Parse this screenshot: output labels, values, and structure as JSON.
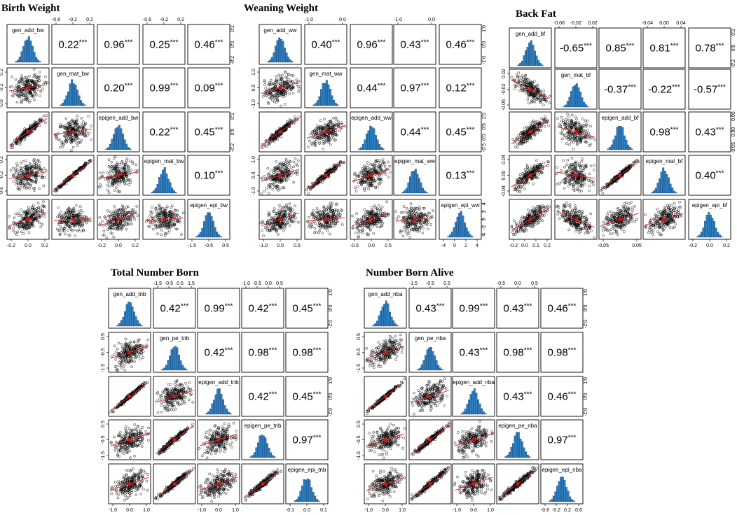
{
  "chart_data": [
    {
      "type": "scatter-matrix",
      "title": "Birth Weight",
      "variables": [
        "gen_add_bw",
        "gen_mat_bw",
        "epigen_add_bw",
        "epigen_mat_bw",
        "epigen_epi_bw"
      ],
      "correlations": [
        {
          "pair": [
            "gen_add_bw",
            "gen_mat_bw"
          ],
          "value": "0.22",
          "sig": "***"
        },
        {
          "pair": [
            "gen_add_bw",
            "epigen_add_bw"
          ],
          "value": "0.96",
          "sig": "***"
        },
        {
          "pair": [
            "gen_add_bw",
            "epigen_mat_bw"
          ],
          "value": "0.25",
          "sig": "***"
        },
        {
          "pair": [
            "gen_add_bw",
            "epigen_epi_bw"
          ],
          "value": "0.46",
          "sig": "***"
        },
        {
          "pair": [
            "gen_mat_bw",
            "epigen_add_bw"
          ],
          "value": "0.20",
          "sig": "***"
        },
        {
          "pair": [
            "gen_mat_bw",
            "epigen_mat_bw"
          ],
          "value": "0.99",
          "sig": "***"
        },
        {
          "pair": [
            "gen_mat_bw",
            "epigen_epi_bw"
          ],
          "value": "0.09",
          "sig": "***"
        },
        {
          "pair": [
            "epigen_add_bw",
            "epigen_mat_bw"
          ],
          "value": "0.22",
          "sig": "***"
        },
        {
          "pair": [
            "epigen_add_bw",
            "epigen_epi_bw"
          ],
          "value": "0.45",
          "sig": "***"
        },
        {
          "pair": [
            "epigen_mat_bw",
            "epigen_epi_bw"
          ],
          "value": "0.10",
          "sig": "***"
        }
      ],
      "top_axis": [
        [
          "-0.6",
          "-0.2",
          "0.2"
        ],
        [
          "-0.6",
          "-0.2",
          "0.2"
        ]
      ],
      "right_axis": [
        [
          "0.2",
          "0.0",
          "-0.2"
        ],
        [
          "0.2",
          "0.0",
          "-0.2"
        ]
      ],
      "bottom_axis": [
        [
          "-0.2",
          "0.0",
          "0.2"
        ],
        [
          "-0.2",
          "0.0",
          "0.2"
        ],
        [
          "-1.5",
          "-0.5",
          "0.5"
        ]
      ],
      "left_axis": [
        [
          "0.2",
          "-0.2",
          "-0.6"
        ],
        [
          "0.2",
          "-0.2",
          "-0.6"
        ]
      ]
    },
    {
      "type": "scatter-matrix",
      "title": "Weaning Weight",
      "variables": [
        "gen_add_ww",
        "gen_mat_ww",
        "epigen_add_ww",
        "epigen_mat_ww",
        "epigen_epi_ww"
      ],
      "correlations": [
        {
          "pair": [
            "gen_add_ww",
            "gen_mat_ww"
          ],
          "value": "0.40",
          "sig": "***"
        },
        {
          "pair": [
            "gen_add_ww",
            "epigen_add_ww"
          ],
          "value": "0.96",
          "sig": "***"
        },
        {
          "pair": [
            "gen_add_ww",
            "epigen_mat_ww"
          ],
          "value": "0.43",
          "sig": "***"
        },
        {
          "pair": [
            "gen_add_ww",
            "epigen_epi_ww"
          ],
          "value": "0.46",
          "sig": "***"
        },
        {
          "pair": [
            "gen_mat_ww",
            "epigen_add_ww"
          ],
          "value": "0.44",
          "sig": "***"
        },
        {
          "pair": [
            "gen_mat_ww",
            "epigen_mat_ww"
          ],
          "value": "0.97",
          "sig": "***"
        },
        {
          "pair": [
            "gen_mat_ww",
            "epigen_epi_ww"
          ],
          "value": "0.12",
          "sig": "***"
        },
        {
          "pair": [
            "epigen_add_ww",
            "epigen_mat_ww"
          ],
          "value": "0.44",
          "sig": "***"
        },
        {
          "pair": [
            "epigen_add_ww",
            "epigen_epi_ww"
          ],
          "value": "0.45",
          "sig": "***"
        },
        {
          "pair": [
            "epigen_mat_ww",
            "epigen_epi_ww"
          ],
          "value": "0.13",
          "sig": "***"
        }
      ],
      "top_axis": [
        [
          "-1.0",
          "0.0"
        ],
        [
          "-1.0",
          "0.0"
        ]
      ],
      "right_axis": [
        [
          "1.0",
          "0.0",
          "-1.0"
        ],
        [
          "1.0",
          "0.5",
          "0.0",
          "-0.5"
        ],
        [
          "4",
          "2",
          "0",
          "-2",
          "-4"
        ]
      ],
      "bottom_axis": [
        [
          "-1.0",
          "0.0",
          "0.5"
        ],
        [
          "-0.5",
          "0.0",
          "0.5"
        ],
        [
          "-4",
          "0",
          "2",
          "4"
        ]
      ],
      "left_axis": [
        [
          "1.0",
          "0.0",
          "-1.0"
        ],
        [
          "1.0",
          "0.0",
          "-1.0"
        ]
      ]
    },
    {
      "type": "scatter-matrix",
      "title": "Back Fat",
      "variables": [
        "gen_add_bf",
        "gen_mat_bf",
        "epigen_add_bf",
        "epigen_mat_bf",
        "epigen_epi_bf"
      ],
      "correlations": [
        {
          "pair": [
            "gen_add_bf",
            "gen_mat_bf"
          ],
          "value": "-0.65",
          "sig": "***"
        },
        {
          "pair": [
            "gen_add_bf",
            "epigen_add_bf"
          ],
          "value": "0.85",
          "sig": "***"
        },
        {
          "pair": [
            "gen_add_bf",
            "epigen_mat_bf"
          ],
          "value": "0.81",
          "sig": "***"
        },
        {
          "pair": [
            "gen_add_bf",
            "epigen_epi_bf"
          ],
          "value": "0.78",
          "sig": "***"
        },
        {
          "pair": [
            "gen_mat_bf",
            "epigen_add_bf"
          ],
          "value": "-0.37",
          "sig": "***"
        },
        {
          "pair": [
            "gen_mat_bf",
            "epigen_mat_bf"
          ],
          "value": "-0.22",
          "sig": "***"
        },
        {
          "pair": [
            "gen_mat_bf",
            "epigen_epi_bf"
          ],
          "value": "-0.57",
          "sig": "***"
        },
        {
          "pair": [
            "epigen_add_bf",
            "epigen_mat_bf"
          ],
          "value": "0.98",
          "sig": "***"
        },
        {
          "pair": [
            "epigen_add_bf",
            "epigen_epi_bf"
          ],
          "value": "0.43",
          "sig": "***"
        },
        {
          "pair": [
            "epigen_mat_bf",
            "epigen_epi_bf"
          ],
          "value": "0.40",
          "sig": "***"
        }
      ],
      "top_axis": [
        [
          "-0.06",
          "-0.02",
          "0.02"
        ],
        [
          "-0.04",
          "0.00",
          "0.04"
        ]
      ],
      "right_axis": [
        [
          "0.2",
          "0.0",
          "-0.2"
        ],
        [
          "0.05",
          "0.00",
          "-0.05"
        ]
      ],
      "bottom_axis": [
        [
          "-0.2",
          "0.0",
          "0.1",
          "0.2"
        ],
        [
          "-0.05",
          "0.05"
        ],
        [
          "-0.2",
          "0.0",
          "0.2"
        ]
      ],
      "left_axis": [
        [
          "0.02",
          "-0.02",
          "-0.06"
        ],
        [
          "0.04",
          "0.00",
          "-0.04"
        ]
      ]
    },
    {
      "type": "scatter-matrix",
      "title": "Total Number Born",
      "variables": [
        "gen_add_tnb",
        "gen_pe_tnb",
        "epigen_add_tnb",
        "epigen_pe_tnb",
        "epigen_epi_tnb"
      ],
      "correlations": [
        {
          "pair": [
            "gen_add_tnb",
            "gen_pe_tnb"
          ],
          "value": "0.42",
          "sig": "***"
        },
        {
          "pair": [
            "gen_add_tnb",
            "epigen_add_tnb"
          ],
          "value": "0.99",
          "sig": "***"
        },
        {
          "pair": [
            "gen_add_tnb",
            "epigen_pe_tnb"
          ],
          "value": "0.42",
          "sig": "***"
        },
        {
          "pair": [
            "gen_add_tnb",
            "epigen_epi_tnb"
          ],
          "value": "0.45",
          "sig": "***"
        },
        {
          "pair": [
            "gen_pe_tnb",
            "epigen_add_tnb"
          ],
          "value": "0.42",
          "sig": "***"
        },
        {
          "pair": [
            "gen_pe_tnb",
            "epigen_pe_tnb"
          ],
          "value": "0.98",
          "sig": "***"
        },
        {
          "pair": [
            "gen_pe_tnb",
            "epigen_epi_tnb"
          ],
          "value": "0.98",
          "sig": "***"
        },
        {
          "pair": [
            "epigen_add_tnb",
            "epigen_pe_tnb"
          ],
          "value": "0.42",
          "sig": "***"
        },
        {
          "pair": [
            "epigen_add_tnb",
            "epigen_epi_tnb"
          ],
          "value": "0.45",
          "sig": "***"
        },
        {
          "pair": [
            "epigen_pe_tnb",
            "epigen_epi_tnb"
          ],
          "value": "0.97",
          "sig": "***"
        }
      ],
      "top_axis": [
        [
          "-1.5",
          "-0.5",
          "0.5",
          "1.5"
        ],
        [
          "-1.0",
          "-0.5",
          "0.0",
          "0.5"
        ]
      ],
      "right_axis": [
        [
          "1.0",
          "0.0",
          "-1.0"
        ],
        [
          "1.0",
          "0.0",
          "-1.0"
        ]
      ],
      "bottom_axis": [
        [
          "-1.0",
          "0.0",
          "1.0"
        ],
        [
          "-1.0",
          "0.0",
          "1.0"
        ],
        [
          "-0.1",
          "0.0",
          "0.1"
        ]
      ],
      "left_axis": [
        [
          "0.5",
          "-0.5",
          "-1.5"
        ],
        [
          "0.5",
          "-0.5",
          "-1.5"
        ]
      ]
    },
    {
      "type": "scatter-matrix",
      "title": "Number Born Alive",
      "variables": [
        "gen_add_nba",
        "gen_pe_nba",
        "epigen_add_nba",
        "epigen_pe_nba",
        "epigen_epi_nba"
      ],
      "correlations": [
        {
          "pair": [
            "gen_add_nba",
            "gen_pe_nba"
          ],
          "value": "0.43",
          "sig": "***"
        },
        {
          "pair": [
            "gen_add_nba",
            "epigen_add_nba"
          ],
          "value": "0.99",
          "sig": "***"
        },
        {
          "pair": [
            "gen_add_nba",
            "epigen_pe_nba"
          ],
          "value": "0.43",
          "sig": "***"
        },
        {
          "pair": [
            "gen_add_nba",
            "epigen_epi_nba"
          ],
          "value": "0.46",
          "sig": "***"
        },
        {
          "pair": [
            "gen_pe_nba",
            "epigen_add_nba"
          ],
          "value": "0.43",
          "sig": "***"
        },
        {
          "pair": [
            "gen_pe_nba",
            "epigen_pe_nba"
          ],
          "value": "0.98",
          "sig": "***"
        },
        {
          "pair": [
            "gen_pe_nba",
            "epigen_epi_nba"
          ],
          "value": "0.98",
          "sig": "***"
        },
        {
          "pair": [
            "epigen_add_nba",
            "epigen_pe_nba"
          ],
          "value": "0.43",
          "sig": "***"
        },
        {
          "pair": [
            "epigen_add_nba",
            "epigen_epi_nba"
          ],
          "value": "0.46",
          "sig": "***"
        },
        {
          "pair": [
            "epigen_pe_nba",
            "epigen_epi_nba"
          ],
          "value": "0.97",
          "sig": "***"
        }
      ],
      "top_axis": [
        [
          "-1.5",
          "-0.5",
          "0.5"
        ],
        [
          "-0.5",
          "0.0",
          "0.5"
        ]
      ],
      "right_axis": [
        [
          "1.0",
          "0.0",
          "-1.0"
        ],
        [
          "1.0",
          "0.0",
          "-1.0"
        ]
      ],
      "bottom_axis": [
        [
          "-1.0",
          "0.0",
          "1.0"
        ],
        [
          "-1.0",
          "0.0",
          "1.0"
        ],
        [
          "-0.6",
          "-0.2",
          "0.2",
          "0.6"
        ]
      ],
      "left_axis": [
        [
          "0.5",
          "-0.5",
          "-1.5"
        ],
        [
          "0.5",
          "-0.5",
          "-1.5"
        ]
      ]
    }
  ],
  "colors": {
    "histogram": "#2f7fc1",
    "points": "#000000",
    "fit_line": "#e03030",
    "center": "#d21414"
  }
}
